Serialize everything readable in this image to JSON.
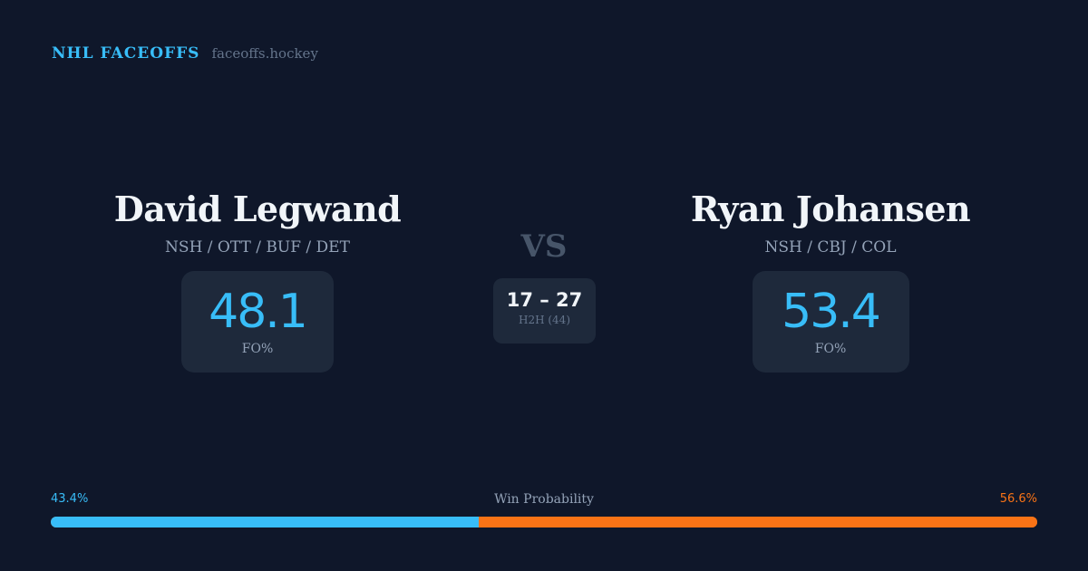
{
  "brand": {
    "title": "NHL FACEOFFS",
    "url": "faceoffs.hockey"
  },
  "left": {
    "name": "David Legwand",
    "teams": "NSH / OTT / BUF / DET",
    "fo_pct": "48.1",
    "fo_label": "FO%"
  },
  "right": {
    "name": "Ryan Johansen",
    "teams": "NSH / CBJ / COL",
    "fo_pct": "53.4",
    "fo_label": "FO%"
  },
  "vs": "VS",
  "h2h": {
    "score": "17 – 27",
    "label": "H2H (44)"
  },
  "win_probability": {
    "label": "Win Probability",
    "left": "43.4%",
    "right": "56.6%",
    "left_value": 43.4,
    "right_value": 56.6
  },
  "colors": {
    "left": "#38bdf8",
    "right": "#f97316",
    "background": "#0f172a"
  }
}
